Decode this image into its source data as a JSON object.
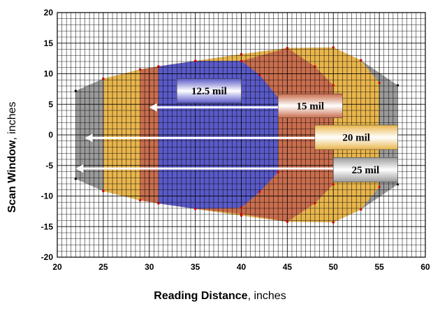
{
  "chart_data": {
    "type": "area",
    "xlabel_bold": "Reading Distance",
    "xlabel_rest": ", inches",
    "ylabel_bold": "Scan Window",
    "ylabel_rest": ", inches",
    "xlim": [
      20,
      60
    ],
    "ylim": [
      -20,
      20
    ],
    "xticks": [
      "20",
      "25",
      "30",
      "35",
      "40",
      "45",
      "50",
      "55",
      "60"
    ],
    "yticks": [
      "20",
      "15",
      "10",
      "5",
      "0",
      "-5",
      "-10",
      "-15",
      "-20"
    ],
    "grid": true,
    "colors": {
      "grid": "#000000",
      "s25": "#9a9a9a",
      "s20": "#e9b64d",
      "s15": "#c96e4e",
      "s125": "#5a5ac8",
      "arrow": "#ffffff"
    },
    "series": [
      {
        "name": "25 mil",
        "color": "#9a9a9a",
        "points": [
          [
            22,
            7.2
          ],
          [
            25,
            9.2
          ],
          [
            29,
            10.7
          ],
          [
            31,
            11.2
          ],
          [
            35,
            12.1
          ],
          [
            40,
            13.2
          ],
          [
            45,
            14.2
          ],
          [
            50,
            14.3
          ],
          [
            53,
            12.2
          ],
          [
            57,
            8.1
          ],
          [
            57,
            -8.1
          ],
          [
            53,
            -12.2
          ],
          [
            50,
            -14.3
          ],
          [
            45,
            -14.2
          ],
          [
            40,
            -13.2
          ],
          [
            35,
            -12.1
          ],
          [
            31,
            -11.2
          ],
          [
            29,
            -10.7
          ],
          [
            25,
            -9.2
          ],
          [
            22,
            -7.2
          ]
        ]
      },
      {
        "name": "20 mil",
        "color": "#e9b64d",
        "points": [
          [
            25,
            9.2
          ],
          [
            29,
            10.7
          ],
          [
            31,
            11.2
          ],
          [
            35,
            12.1
          ],
          [
            40,
            13.2
          ],
          [
            45,
            14.2
          ],
          [
            50,
            14.3
          ],
          [
            53,
            12.2
          ],
          [
            55,
            8.5
          ],
          [
            55,
            -8.5
          ],
          [
            53,
            -12.2
          ],
          [
            50,
            -14.3
          ],
          [
            45,
            -14.2
          ],
          [
            40,
            -13.2
          ],
          [
            35,
            -12.1
          ],
          [
            31,
            -11.2
          ],
          [
            29,
            -10.7
          ],
          [
            25,
            -9.2
          ]
        ]
      },
      {
        "name": "15 mil",
        "color": "#c96e4e",
        "points": [
          [
            29,
            10.7
          ],
          [
            31,
            11.2
          ],
          [
            35,
            12.1
          ],
          [
            40,
            12.1
          ],
          [
            45,
            14.2
          ],
          [
            48,
            11.2
          ],
          [
            50,
            8.1
          ],
          [
            50,
            -8.1
          ],
          [
            48,
            -11.2
          ],
          [
            45,
            -14.2
          ],
          [
            40,
            -12.9
          ],
          [
            35,
            -12.1
          ],
          [
            31,
            -11.2
          ],
          [
            29,
            -10.7
          ]
        ]
      },
      {
        "name": "12.5 mil",
        "color": "#5a5ac8",
        "points": [
          [
            31,
            11.2
          ],
          [
            35,
            12.1
          ],
          [
            40,
            12.1
          ],
          [
            42,
            9.8
          ],
          [
            44,
            6.1
          ],
          [
            44,
            -6.1
          ],
          [
            42,
            -9.3
          ],
          [
            40,
            -11.9
          ],
          [
            35,
            -12.1
          ],
          [
            31,
            -11.2
          ]
        ]
      }
    ],
    "labels": [
      {
        "text": "12.5 mil",
        "x_range": [
          33,
          40
        ],
        "y_range": [
          5.2,
          9.2
        ],
        "color": "#5a5ac8"
      },
      {
        "text": "15 mil",
        "x_range": [
          44,
          51
        ],
        "y_range": [
          2.8,
          6.7
        ],
        "color": "#c96e4e"
      },
      {
        "text": "20 mil",
        "x_range": [
          48,
          57
        ],
        "y_range": [
          -2.4,
          1.6
        ],
        "color": "#e9b64d"
      },
      {
        "text": "25 mil",
        "x_range": [
          50,
          57
        ],
        "y_range": [
          -7.7,
          -3.7
        ],
        "color": "#9a9a9a"
      }
    ],
    "arrows": [
      {
        "from": [
          44,
          4.5
        ],
        "to": [
          30,
          4.5
        ]
      },
      {
        "from": [
          48,
          -0.5
        ],
        "to": [
          23,
          -0.5
        ]
      },
      {
        "from": [
          50,
          -5.5
        ],
        "to": [
          22,
          -5.5
        ]
      }
    ]
  }
}
